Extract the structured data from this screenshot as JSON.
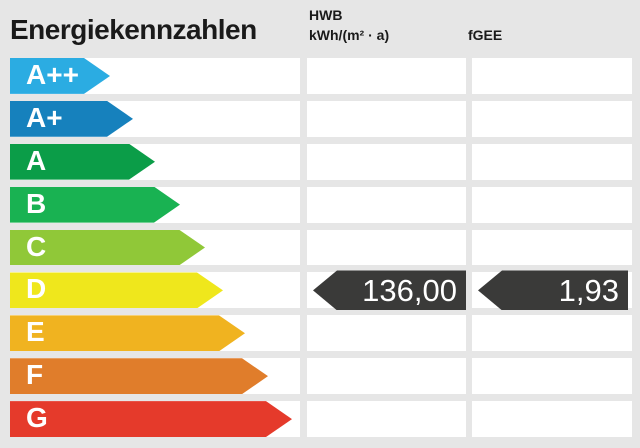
{
  "title": "Energiekennzahlen",
  "header": {
    "hwb_label": "HWB",
    "hwb_unit": "kWh/(m² · a)",
    "fgee_label": "fGEE"
  },
  "scale": {
    "bands": [
      {
        "label": "A++",
        "color": "#2BACE2",
        "arrow_width": 100
      },
      {
        "label": "A+",
        "color": "#1681BD",
        "arrow_width": 123
      },
      {
        "label": "A",
        "color": "#0B9D48",
        "arrow_width": 145
      },
      {
        "label": "B",
        "color": "#19B252",
        "arrow_width": 170
      },
      {
        "label": "C",
        "color": "#90C838",
        "arrow_width": 195
      },
      {
        "label": "D",
        "color": "#EFE71C",
        "arrow_width": 213
      },
      {
        "label": "E",
        "color": "#F0B320",
        "arrow_width": 235
      },
      {
        "label": "F",
        "color": "#E07D2B",
        "arrow_width": 258
      },
      {
        "label": "G",
        "color": "#E53A2B",
        "arrow_width": 282
      }
    ]
  },
  "values": {
    "rating_band": "D",
    "hwb": "136,00",
    "fgee": "1,93",
    "marker_color": "#3A3A39"
  },
  "colors": {
    "background": "#E6E6E6",
    "row_background": "#FFFFFF",
    "heading_text": "#1A1A1A",
    "band_text": "#FFFFFF",
    "value_text": "#FFFFFF"
  },
  "chart_data": {
    "type": "bar",
    "title": "Energiekennzahlen",
    "categories": [
      "A++",
      "A+",
      "A",
      "B",
      "C",
      "D",
      "E",
      "F",
      "G"
    ],
    "band_colors": [
      "#2BACE2",
      "#1681BD",
      "#0B9D48",
      "#19B252",
      "#90C838",
      "#EFE71C",
      "#F0B320",
      "#E07D2B",
      "#E53A2B"
    ],
    "series": [
      {
        "name": "HWB",
        "unit": "kWh/(m² · a)",
        "value": 136.0,
        "display": "136,00",
        "band": "D"
      },
      {
        "name": "fGEE",
        "unit": "",
        "value": 1.93,
        "display": "1,93",
        "band": "D"
      }
    ],
    "legend_position": "none",
    "grid": false
  }
}
